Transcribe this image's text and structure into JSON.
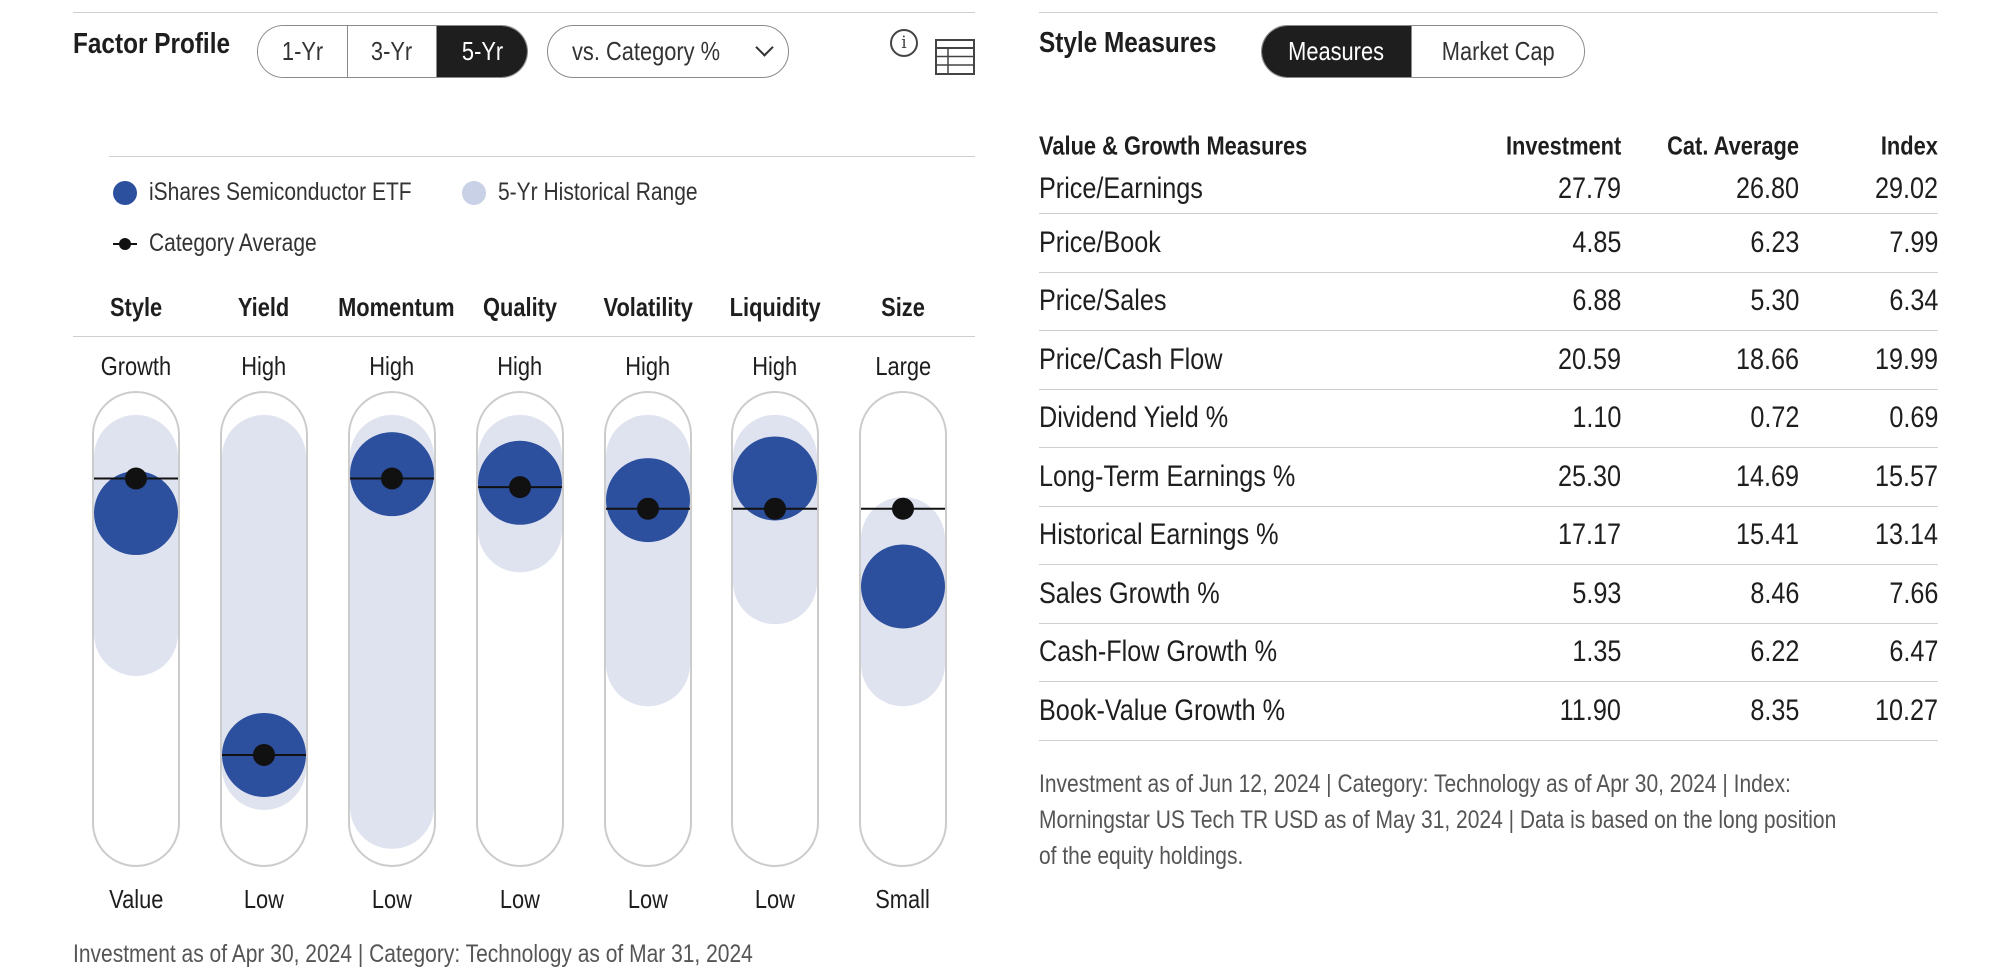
{
  "factor_profile": {
    "title": "Factor Profile",
    "periods": [
      "1-Yr",
      "3-Yr",
      "5-Yr"
    ],
    "active_period": "5-Yr",
    "compare_dropdown": "vs. Category %",
    "legend": {
      "fund": "iShares Semiconductor ETF",
      "range": "5-Yr Historical Range",
      "category": "Category Average"
    },
    "colors": {
      "fund": "#2c4f9e",
      "range": "#dfe3ef",
      "category": "#111111",
      "track_border": "#cccccc"
    },
    "factors": [
      {
        "name": "Style",
        "top": "Growth",
        "bottom": "Value",
        "fund": 78,
        "cat": 86,
        "range": [
          50,
          91
        ]
      },
      {
        "name": "Yield",
        "top": "High",
        "bottom": "Low",
        "fund": 22,
        "cat": 22,
        "range": [
          19,
          91
        ]
      },
      {
        "name": "Momentum",
        "top": "High",
        "bottom": "Low",
        "fund": 87,
        "cat": 86,
        "range": [
          10,
          91
        ]
      },
      {
        "name": "Quality",
        "top": "High",
        "bottom": "Low",
        "fund": 85,
        "cat": 84,
        "range": [
          74,
          91
        ]
      },
      {
        "name": "Volatility",
        "top": "High",
        "bottom": "Low",
        "fund": 81,
        "cat": 79,
        "range": [
          43,
          91
        ]
      },
      {
        "name": "Liquidity",
        "top": "High",
        "bottom": "Low",
        "fund": 86,
        "cat": 79,
        "range": [
          62,
          91
        ]
      },
      {
        "name": "Size",
        "top": "Large",
        "bottom": "Small",
        "fund": 61,
        "cat": 79,
        "range": [
          43,
          72
        ]
      }
    ],
    "footnote": "Investment as of Apr 30, 2024 | Category: Technology as of Mar 31, 2024"
  },
  "style_measures": {
    "title": "Style Measures",
    "tabs": [
      "Measures",
      "Market Cap"
    ],
    "active_tab": "Measures",
    "columns": [
      "Value & Growth Measures",
      "Investment",
      "Cat. Average",
      "Index"
    ],
    "rows": [
      [
        "Price/Earnings",
        "27.79",
        "26.80",
        "29.02"
      ],
      [
        "Price/Book",
        "4.85",
        "6.23",
        "7.99"
      ],
      [
        "Price/Sales",
        "6.88",
        "5.30",
        "6.34"
      ],
      [
        "Price/Cash Flow",
        "20.59",
        "18.66",
        "19.99"
      ],
      [
        "Dividend Yield %",
        "1.10",
        "0.72",
        "0.69"
      ],
      [
        "Long-Term Earnings %",
        "25.30",
        "14.69",
        "15.57"
      ],
      [
        "Historical Earnings %",
        "17.17",
        "15.41",
        "13.14"
      ],
      [
        "Sales Growth %",
        "5.93",
        "8.46",
        "7.66"
      ],
      [
        "Cash-Flow Growth %",
        "1.35",
        "6.22",
        "6.47"
      ],
      [
        "Book-Value Growth %",
        "11.90",
        "8.35",
        "10.27"
      ]
    ],
    "footnote_lines": [
      "Investment as of Jun 12, 2024 | Category: Technology as of Apr 30, 2024 | Index:",
      "Morningstar US Tech TR USD as of May 31, 2024 | Data is based on the long position",
      "of the equity holdings."
    ]
  }
}
